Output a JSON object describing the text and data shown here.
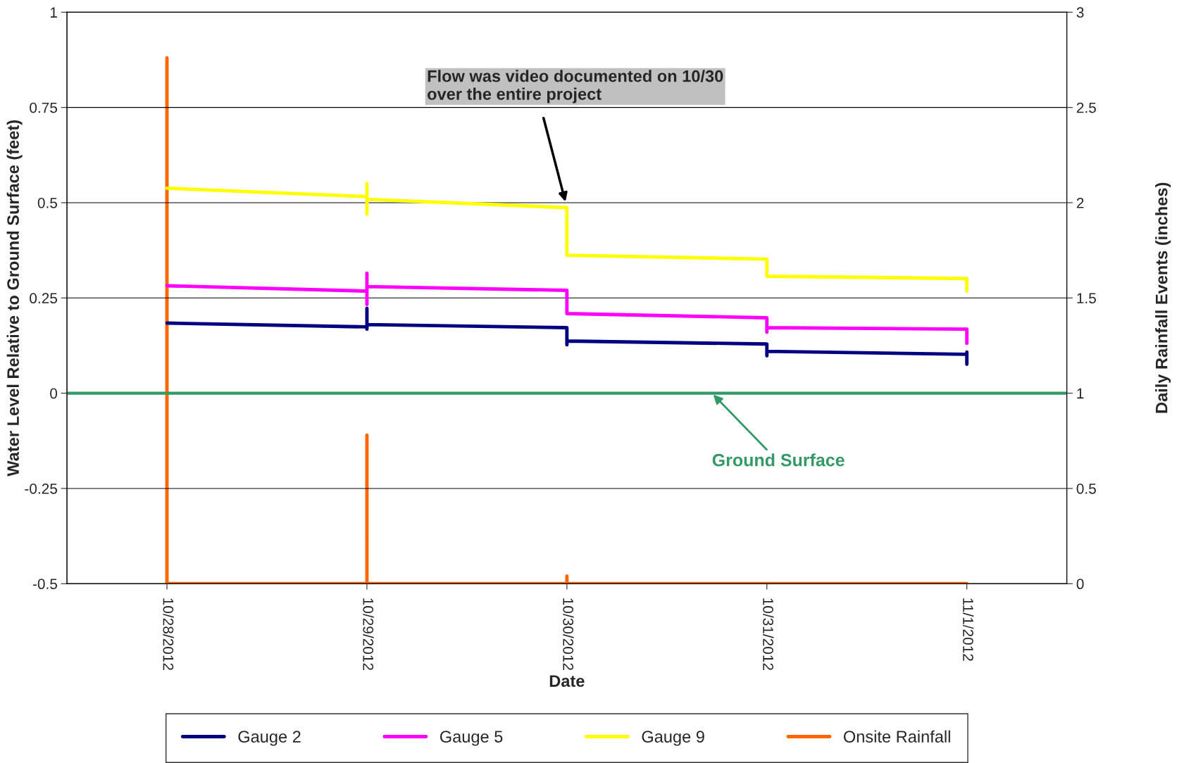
{
  "chart_data": {
    "type": "line",
    "xlabel": "Date",
    "ylabel": "Water Level Relative to Ground Surface (feet)",
    "y2label": "Daily Rainfall Events (inches)",
    "xlim": [
      "2012-10-27T12:00",
      "2012-11-01T12:00"
    ],
    "xticks": [
      {
        "value": "2012-10-28",
        "label": "10/28/2012"
      },
      {
        "value": "2012-10-29",
        "label": "10/29/2012"
      },
      {
        "value": "2012-10-30",
        "label": "10/30/2012"
      },
      {
        "value": "2012-10-31",
        "label": "10/31/2012"
      },
      {
        "value": "2012-11-01",
        "label": "11/1/2012"
      }
    ],
    "ylim": [
      -0.5,
      1
    ],
    "yticks": [
      -0.5,
      -0.25,
      0,
      0.25,
      0.5,
      0.75,
      1
    ],
    "y2lim": [
      0,
      3
    ],
    "y2ticks": [
      0,
      0.5,
      1,
      1.5,
      2,
      2.5,
      3
    ],
    "grid": "y",
    "legend": "bottom",
    "marker": "none",
    "line_style": "solid",
    "series": [
      {
        "name": "Gauge 2",
        "color": "#000080",
        "x": [
          "2012-10-28",
          "2012-10-29",
          "2012-10-29",
          "2012-10-29",
          "2012-10-29",
          "2012-10-30",
          "2012-10-30",
          "2012-10-30",
          "2012-10-31",
          "2012-10-31",
          "2012-10-31",
          "2012-11-01",
          "2012-11-01",
          "2012-11-01"
        ],
        "values": [
          0.184,
          0.174,
          0.223,
          0.168,
          0.18,
          0.172,
          0.127,
          0.137,
          0.129,
          0.098,
          0.11,
          0.102,
          0.108,
          0.076
        ]
      },
      {
        "name": "Gauge 5",
        "color": "#ff00ff",
        "x": [
          "2012-10-28",
          "2012-10-29",
          "2012-10-29",
          "2012-10-29",
          "2012-10-29",
          "2012-10-30",
          "2012-10-30",
          "2012-10-31",
          "2012-10-31",
          "2012-10-31",
          "2012-11-01",
          "2012-11-01"
        ],
        "values": [
          0.282,
          0.268,
          0.315,
          0.233,
          0.28,
          0.27,
          0.209,
          0.198,
          0.16,
          0.172,
          0.168,
          0.131
        ]
      },
      {
        "name": "Gauge 9",
        "color": "#ffff00",
        "x": [
          "2012-10-28",
          "2012-10-29",
          "2012-10-29",
          "2012-10-29",
          "2012-10-29",
          "2012-10-30",
          "2012-10-30",
          "2012-10-31",
          "2012-10-31",
          "2012-11-01",
          "2012-11-01"
        ],
        "values": [
          0.538,
          0.516,
          0.55,
          0.47,
          0.509,
          0.487,
          0.362,
          0.352,
          0.307,
          0.301,
          0.268
        ]
      },
      {
        "name": "Onsite Rainfall",
        "color": "#ff6600",
        "axis": "y2",
        "x": [
          "2012-10-28",
          "2012-10-28",
          "2012-10-28",
          "2012-10-29",
          "2012-10-29",
          "2012-10-29",
          "2012-10-30",
          "2012-10-30",
          "2012-10-30",
          "2012-10-31",
          "2012-11-01"
        ],
        "values": [
          0,
          2.76,
          0,
          0,
          0.78,
          0,
          0,
          0.04,
          0,
          0,
          0
        ]
      }
    ],
    "ref_lines": [
      {
        "axis": "y",
        "value": 0,
        "label": "Ground Surface",
        "color": "#339966"
      }
    ],
    "annotations": [
      "Flow was video documented on 10/30\nover the entire project"
    ]
  }
}
